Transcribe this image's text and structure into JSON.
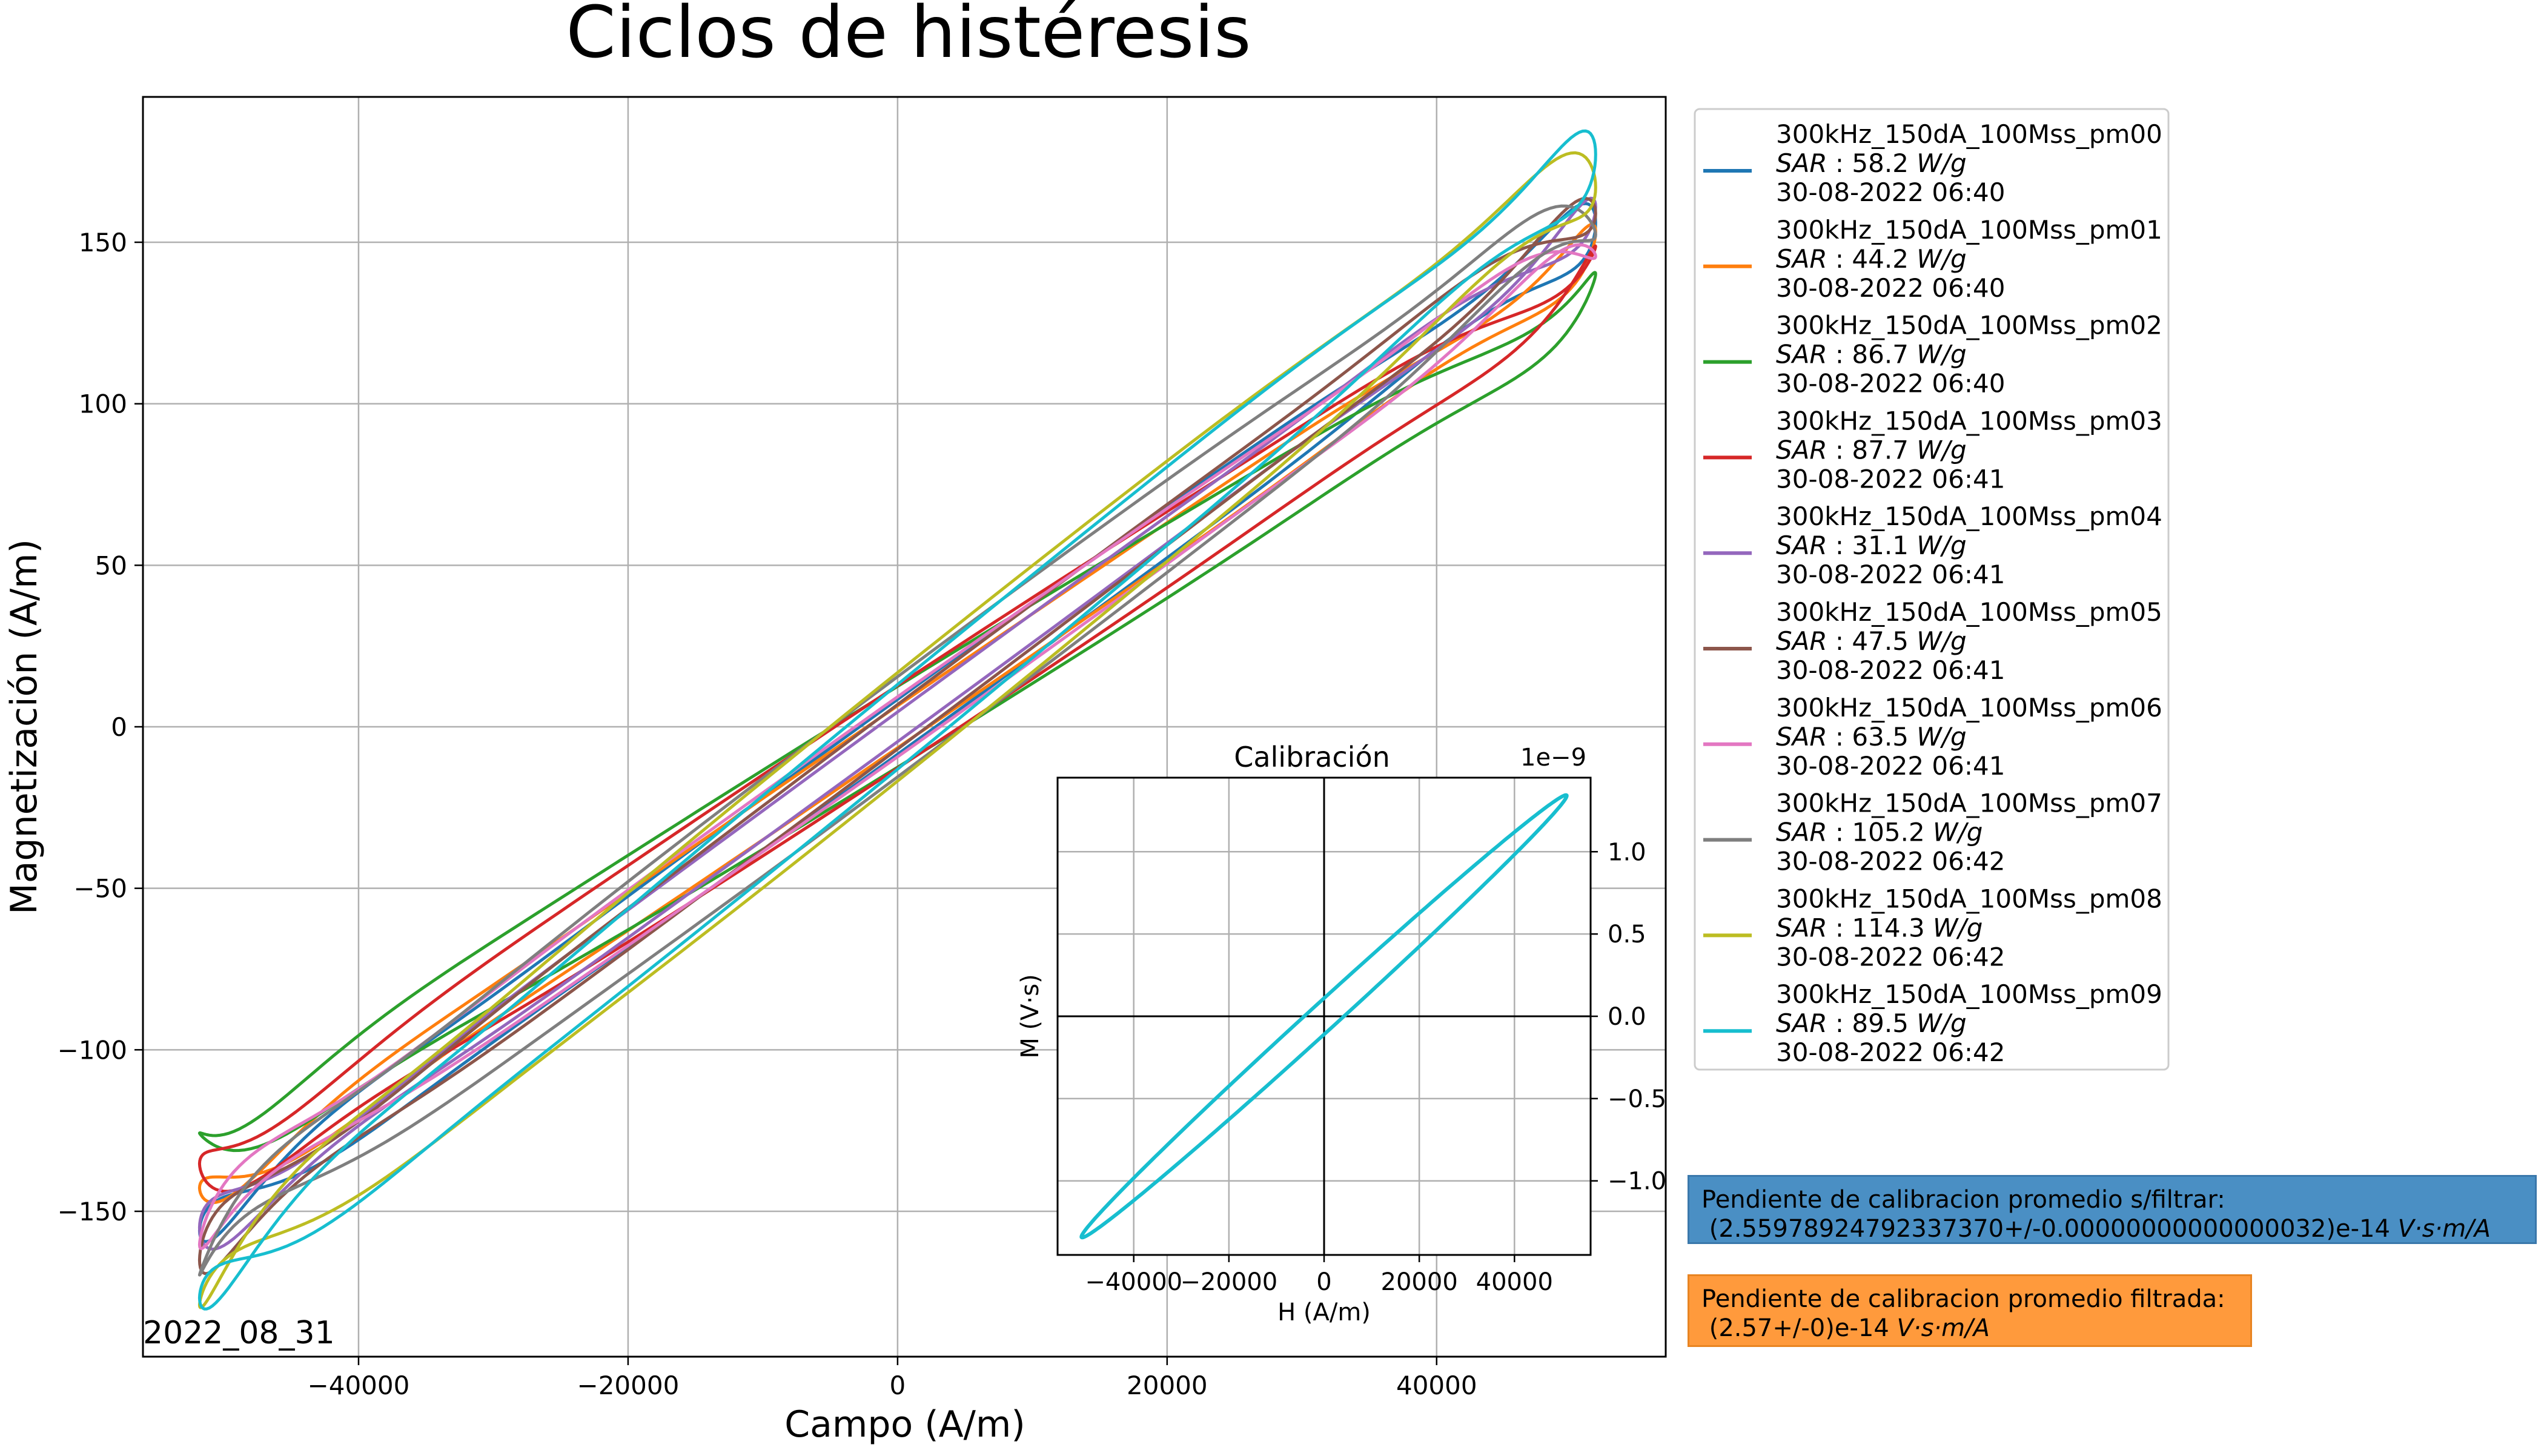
{
  "chart_data": [
    {
      "type": "line",
      "title": "Ciclos de histéresis",
      "xlabel": "Campo (A/m)",
      "ylabel": "Magnetización (A/m)",
      "xlim": [
        -56000,
        57000
      ],
      "ylim": [
        -195,
        195
      ],
      "xticks": [
        -40000,
        -20000,
        0,
        20000,
        40000
      ],
      "xtick_labels": [
        "−40000",
        "−20000",
        "0",
        "20000",
        "40000"
      ],
      "yticks": [
        -150,
        -100,
        -50,
        0,
        50,
        100,
        150
      ],
      "ytick_labels": [
        "−150",
        "−100",
        "−50",
        "0",
        "50",
        "100",
        "150"
      ],
      "grid": true,
      "legend_position": "outside-right",
      "corner_label": "2022_08_31",
      "hmax": 51800,
      "series": [
        {
          "name": "300kHz_150dA_100Mss_pm00",
          "sar_value": "58.2",
          "date": "30-08-2022 06:40",
          "color": "#1f77b4",
          "y_max": 156,
          "half_width": 8.5
        },
        {
          "name": "300kHz_150dA_100Mss_pm01",
          "sar_value": "44.2",
          "date": "30-08-2022 06:40",
          "color": "#ff7f0e",
          "y_max": 148,
          "half_width": 6.5
        },
        {
          "name": "300kHz_150dA_100Mss_pm02",
          "sar_value": "86.7",
          "date": "30-08-2022 06:40",
          "color": "#2ca02c",
          "y_max": 133,
          "half_width": 12.5
        },
        {
          "name": "300kHz_150dA_100Mss_pm03",
          "sar_value": "87.7",
          "date": "30-08-2022 06:41",
          "color": "#d62728",
          "y_max": 142,
          "half_width": 12.8
        },
        {
          "name": "300kHz_150dA_100Mss_pm04",
          "sar_value": "31.1",
          "date": "30-08-2022 06:41",
          "color": "#9467bd",
          "y_max": 158,
          "half_width": 4.6
        },
        {
          "name": "300kHz_150dA_100Mss_pm05",
          "sar_value": "47.5",
          "date": "30-08-2022 06:41",
          "color": "#8c564b",
          "y_max": 162,
          "half_width": 6.9
        },
        {
          "name": "300kHz_150dA_100Mss_pm06",
          "sar_value": "63.5",
          "date": "30-08-2022 06:41",
          "color": "#e377c2",
          "y_max": 153,
          "half_width": 9.3
        },
        {
          "name": "300kHz_150dA_100Mss_pm07",
          "sar_value": "105.2",
          "date": "30-08-2022 06:42",
          "color": "#7f7f7f",
          "y_max": 161,
          "half_width": 15.5
        },
        {
          "name": "300kHz_150dA_100Mss_pm08",
          "sar_value": "114.3",
          "date": "30-08-2022 06:42",
          "color": "#bcbd22",
          "y_max": 173,
          "half_width": 16.8
        },
        {
          "name": "300kHz_150dA_100Mss_pm09",
          "sar_value": "89.5",
          "date": "30-08-2022 06:42",
          "color": "#17becf",
          "y_max": 177,
          "half_width": 13.1
        }
      ],
      "sar_label": "SAR :",
      "sar_unit": "W/g"
    },
    {
      "type": "line",
      "title": "Calibración",
      "xlabel": "H (A/m)",
      "ylabel": "M (V·s)",
      "offset_text": "1e−9",
      "xlim": [
        -56000,
        56000
      ],
      "ylim": [
        -1.45,
        1.45
      ],
      "xticks": [
        -40000,
        -20000,
        0,
        20000,
        40000
      ],
      "xtick_labels": [
        "−40000",
        "−20000",
        "0",
        "20000",
        "40000"
      ],
      "yticks": [
        -1.0,
        -0.5,
        0.0,
        0.5,
        1.0
      ],
      "ytick_labels": [
        "−1.0",
        "−0.5",
        "0.0",
        "0.5",
        "1.0"
      ],
      "grid": true,
      "series": [
        {
          "color": "#17becf",
          "h_max": 51000,
          "y_max": 1.34,
          "half_width": 0.11
        }
      ]
    }
  ],
  "annotations": {
    "unfiltered_line1": "Pendiente de calibracion promedio s/filtrar:",
    "unfiltered_value": " (2.55978924792337370+/-0.00000000000000032)e-14 ",
    "filtered_line1": "Pendiente de calibracion promedio filtrada:",
    "filtered_value": " (2.57+/-0)e-14 ",
    "unit": "V·s·m/A"
  }
}
